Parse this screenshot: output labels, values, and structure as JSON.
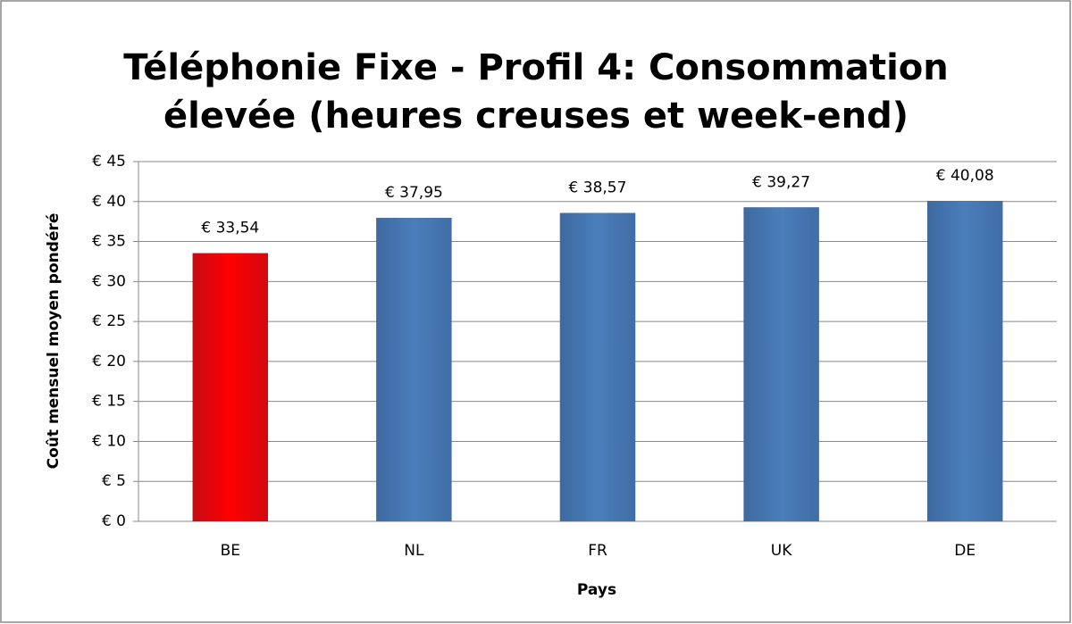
{
  "chart_data": {
    "type": "bar",
    "title": [
      "Téléphonie Fixe - Profil 4:  Consommation",
      "élevée (heures creuses et week-end)"
    ],
    "x_label": "Pays",
    "y_label": "Coût mensuel moyen pondéré",
    "categories": [
      "BE",
      "NL",
      "FR",
      "UK",
      "DE"
    ],
    "values": [
      33.54,
      37.95,
      38.57,
      39.27,
      40.08
    ],
    "value_labels": [
      "€ 33,54",
      "€ 37,95",
      "€ 38,57",
      "€ 39,27",
      "€ 40,08"
    ],
    "colors": [
      "#ff0000",
      "#4a7ebb",
      "#4a7ebb",
      "#4a7ebb",
      "#4a7ebb"
    ],
    "ylim": [
      0,
      45
    ],
    "yticks": [
      {
        "value": 0,
        "label": "€ 0"
      },
      {
        "value": 5,
        "label": "€ 5"
      },
      {
        "value": 10,
        "label": "€ 10"
      },
      {
        "value": 15,
        "label": "€ 15"
      },
      {
        "value": 20,
        "label": "€ 20"
      },
      {
        "value": 25,
        "label": "€ 25"
      },
      {
        "value": 30,
        "label": "€ 30"
      },
      {
        "value": 35,
        "label": "€ 35"
      },
      {
        "value": 40,
        "label": "€ 40"
      },
      {
        "value": 45,
        "label": "€ 45"
      }
    ],
    "grid": true
  }
}
